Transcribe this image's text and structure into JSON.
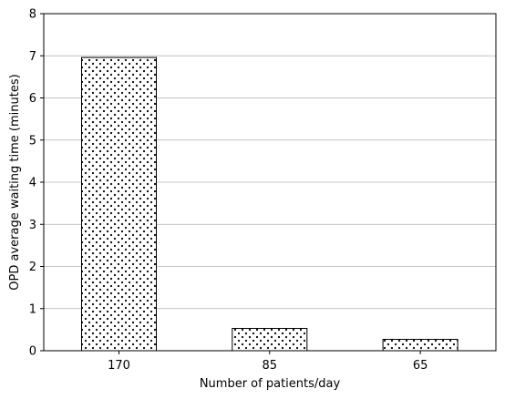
{
  "chart_data": {
    "type": "bar",
    "categories": [
      "170",
      "85",
      "65"
    ],
    "values": [
      6.96,
      0.53,
      0.27
    ],
    "title": "",
    "xlabel": "Number of patients/day",
    "ylabel": "OPD average waiting time (minutes)",
    "ylim": [
      0,
      8
    ],
    "yticks": [
      "0",
      "1",
      "2",
      "3",
      "4",
      "5",
      "6",
      "7",
      "8"
    ],
    "grid": "y-major",
    "bar_style": "white fill, black dotted hatch, black edge"
  }
}
